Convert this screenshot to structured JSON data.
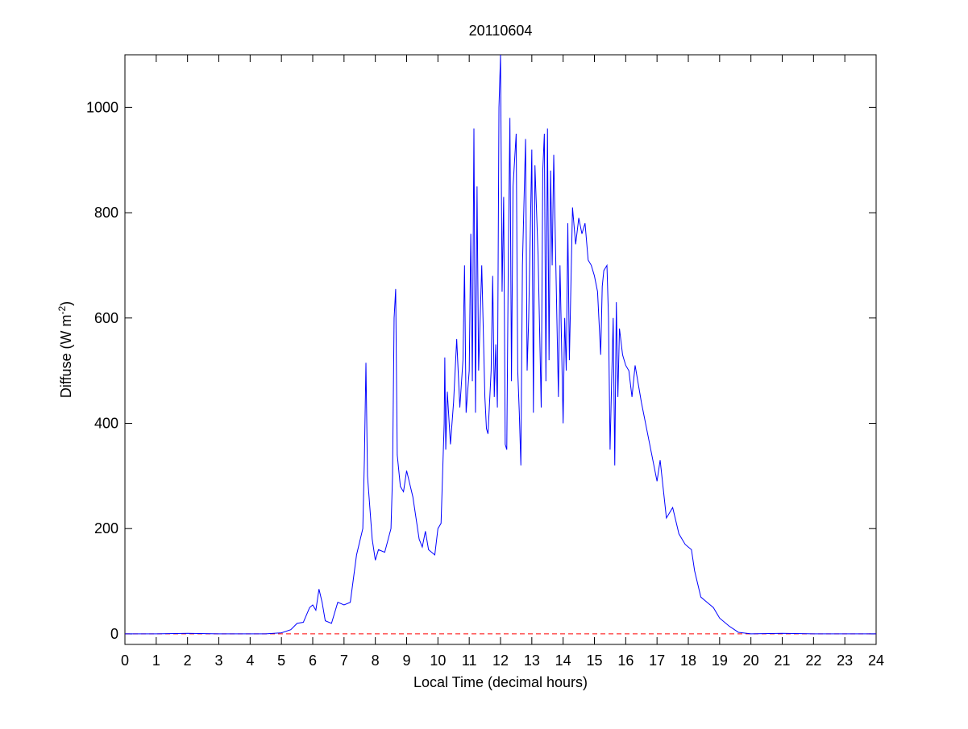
{
  "chart_data": {
    "type": "line",
    "title": "20110604",
    "xlabel": "Local Time (decimal hours)",
    "ylabel": {
      "text": "Diffuse (W m",
      "superscript": "-2",
      "suffix": ")"
    },
    "xlim": [
      0,
      24
    ],
    "xticks": [
      0,
      1,
      2,
      3,
      4,
      5,
      6,
      7,
      8,
      9,
      10,
      11,
      12,
      13,
      14,
      15,
      16,
      17,
      18,
      19,
      20,
      21,
      22,
      23,
      24
    ],
    "ylim": [
      -20,
      1100
    ],
    "yticks": [
      0,
      200,
      400,
      600,
      800,
      1000
    ],
    "grid": false,
    "reference_line": {
      "value": 0,
      "color": "#ff0000",
      "style": "dashed"
    },
    "x": [
      0,
      1,
      2,
      3,
      4,
      4.5,
      5,
      5.3,
      5.5,
      5.7,
      5.9,
      6.0,
      6.1,
      6.2,
      6.3,
      6.4,
      6.6,
      6.8,
      7.0,
      7.2,
      7.4,
      7.6,
      7.65,
      7.7,
      7.75,
      7.9,
      8.0,
      8.1,
      8.3,
      8.5,
      8.55,
      8.6,
      8.65,
      8.7,
      8.8,
      8.9,
      9.0,
      9.2,
      9.4,
      9.5,
      9.6,
      9.7,
      9.9,
      10.0,
      10.1,
      10.2,
      10.22,
      10.25,
      10.3,
      10.4,
      10.5,
      10.6,
      10.7,
      10.8,
      10.85,
      10.9,
      11.0,
      11.05,
      11.1,
      11.15,
      11.2,
      11.25,
      11.3,
      11.4,
      11.5,
      11.55,
      11.6,
      11.7,
      11.75,
      11.8,
      11.85,
      11.9,
      11.95,
      12.0,
      12.05,
      12.1,
      12.15,
      12.2,
      12.25,
      12.3,
      12.35,
      12.4,
      12.5,
      12.55,
      12.6,
      12.65,
      12.7,
      12.8,
      12.85,
      12.9,
      13.0,
      13.05,
      13.1,
      13.2,
      13.3,
      13.35,
      13.4,
      13.45,
      13.5,
      13.55,
      13.6,
      13.65,
      13.7,
      13.8,
      13.85,
      13.9,
      14.0,
      14.05,
      14.1,
      14.15,
      14.2,
      14.3,
      14.4,
      14.5,
      14.6,
      14.7,
      14.8,
      14.9,
      15.0,
      15.1,
      15.2,
      15.25,
      15.3,
      15.4,
      15.45,
      15.5,
      15.55,
      15.6,
      15.65,
      15.7,
      15.75,
      15.8,
      15.9,
      16.0,
      16.1,
      16.2,
      16.3,
      16.5,
      16.7,
      16.9,
      17.0,
      17.1,
      17.3,
      17.5,
      17.7,
      17.9,
      18.1,
      18.2,
      18.4,
      18.6,
      18.8,
      19.0,
      19.3,
      19.6,
      20.0,
      21,
      22,
      23,
      24
    ],
    "series": [
      {
        "color": "#0000ff",
        "values": [
          0,
          0,
          1,
          0,
          0,
          0,
          2,
          8,
          20,
          22,
          50,
          55,
          45,
          85,
          60,
          25,
          20,
          60,
          55,
          60,
          150,
          200,
          330,
          515,
          300,
          180,
          140,
          160,
          155,
          200,
          300,
          600,
          655,
          340,
          280,
          270,
          310,
          260,
          180,
          165,
          195,
          160,
          150,
          200,
          210,
          400,
          525,
          350,
          460,
          360,
          440,
          560,
          430,
          520,
          700,
          420,
          500,
          760,
          480,
          960,
          420,
          850,
          500,
          700,
          450,
          390,
          380,
          500,
          680,
          450,
          550,
          430,
          1000,
          1100,
          650,
          830,
          360,
          350,
          720,
          980,
          480,
          850,
          950,
          500,
          420,
          320,
          700,
          940,
          500,
          600,
          920,
          420,
          890,
          720,
          430,
          880,
          950,
          480,
          960,
          520,
          880,
          700,
          910,
          600,
          450,
          700,
          400,
          600,
          500,
          780,
          520,
          810,
          740,
          790,
          760,
          780,
          710,
          700,
          680,
          650,
          530,
          660,
          690,
          700,
          600,
          350,
          480,
          600,
          320,
          630,
          450,
          580,
          530,
          510,
          500,
          450,
          510,
          440,
          380,
          320,
          290,
          330,
          220,
          240,
          190,
          170,
          160,
          120,
          70,
          60,
          50,
          30,
          15,
          3,
          0,
          1,
          0,
          0,
          0
        ]
      }
    ]
  }
}
